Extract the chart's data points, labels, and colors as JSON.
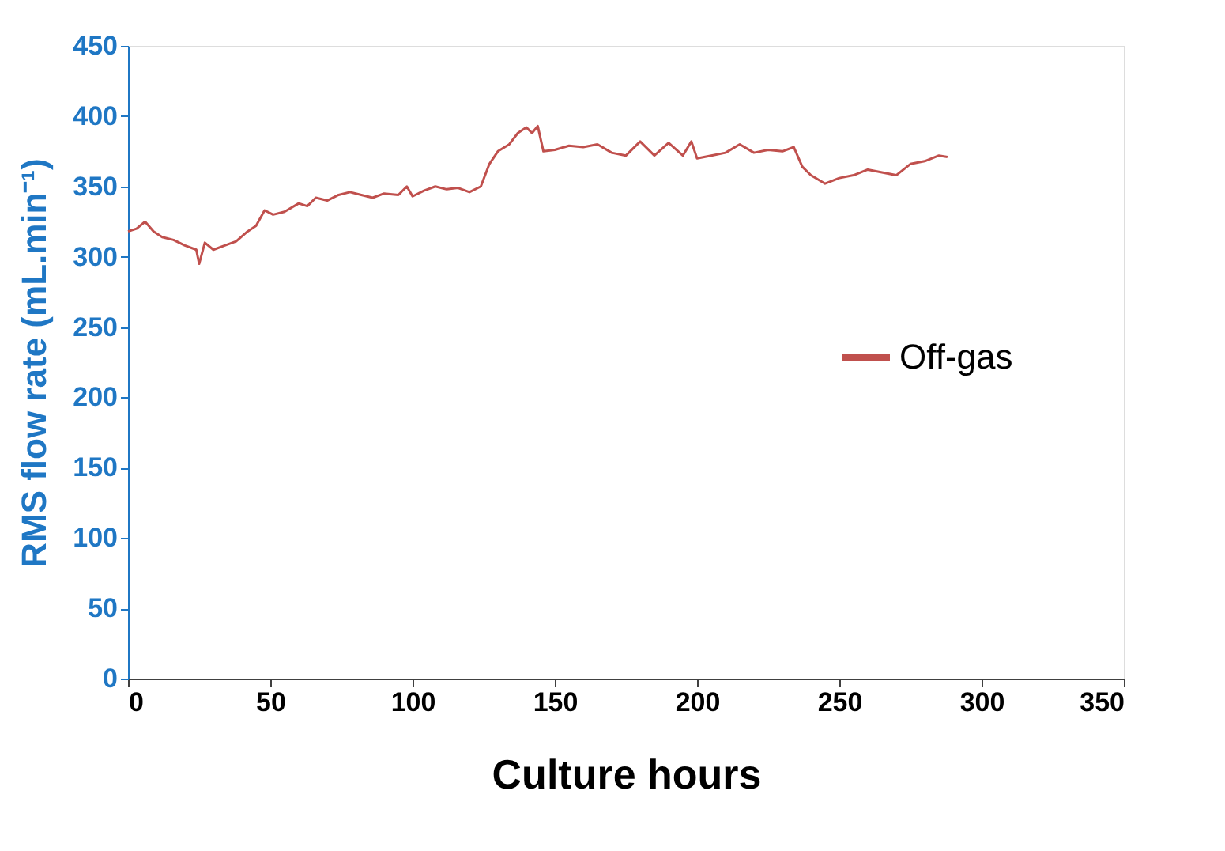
{
  "chart_data": {
    "type": "line",
    "xlabel": "Culture hours",
    "ylabel": "RMS flow rate (mL.min⁻¹)",
    "xlim": [
      0,
      350
    ],
    "xticks": [
      0,
      50,
      100,
      150,
      200,
      250,
      300,
      350
    ],
    "ylim": [
      0,
      450
    ],
    "yticks": [
      0,
      50,
      100,
      150,
      200,
      250,
      300,
      350,
      400,
      450
    ],
    "grid": false,
    "legend": "right",
    "marker": "none",
    "line_style": "solid",
    "series": [
      {
        "name": "Off-gas",
        "color": "#c0504d",
        "x": [
          0,
          3,
          6,
          9,
          12,
          16,
          20,
          24,
          25,
          27,
          30,
          34,
          38,
          42,
          45,
          48,
          51,
          55,
          60,
          63,
          66,
          70,
          74,
          78,
          82,
          86,
          90,
          95,
          98,
          100,
          104,
          108,
          112,
          116,
          120,
          124,
          127,
          130,
          134,
          137,
          140,
          142,
          144,
          146,
          150,
          155,
          160,
          165,
          170,
          175,
          180,
          185,
          190,
          195,
          198,
          200,
          205,
          210,
          215,
          220,
          225,
          230,
          234,
          237,
          240,
          245,
          250,
          255,
          260,
          265,
          270,
          275,
          280,
          285,
          288
        ],
        "values": [
          318,
          320,
          325,
          318,
          314,
          312,
          308,
          305,
          295,
          310,
          305,
          308,
          311,
          318,
          322,
          333,
          330,
          332,
          338,
          336,
          342,
          340,
          344,
          346,
          344,
          342,
          345,
          344,
          350,
          343,
          347,
          350,
          348,
          349,
          346,
          350,
          366,
          375,
          380,
          388,
          392,
          388,
          393,
          375,
          376,
          379,
          378,
          380,
          374,
          372,
          382,
          372,
          381,
          372,
          382,
          370,
          372,
          374,
          380,
          374,
          376,
          375,
          378,
          364,
          358,
          352,
          356,
          358,
          362,
          360,
          358,
          366,
          368,
          372,
          371
        ]
      }
    ]
  }
}
